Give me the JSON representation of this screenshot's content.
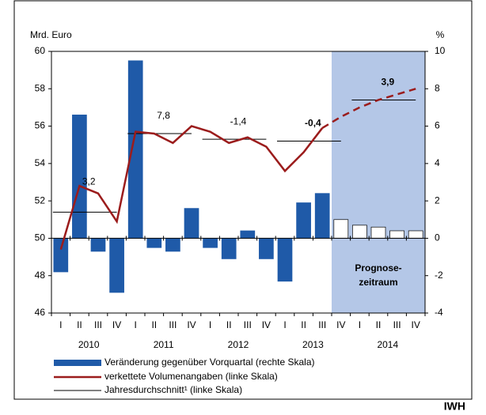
{
  "chart_data": {
    "type": "bar-line",
    "left_axis_label": "Mrd. Euro",
    "right_axis_label": "%",
    "categories": [
      "I",
      "II",
      "III",
      "IV",
      "I",
      "II",
      "III",
      "IV",
      "I",
      "II",
      "III",
      "IV",
      "I",
      "II",
      "III",
      "IV",
      "I",
      "II",
      "III",
      "IV"
    ],
    "years": [
      "2010",
      "2011",
      "2012",
      "2013",
      "2014"
    ],
    "ylim": [
      46,
      60
    ],
    "yticks": [
      46,
      48,
      50,
      52,
      54,
      56,
      58,
      60
    ],
    "y2lim": [
      -4,
      10
    ],
    "y2ticks": [
      -4,
      -2,
      0,
      2,
      4,
      6,
      8,
      10
    ],
    "series": [
      {
        "name": "Veränderung gegenüber Vorquartal (rechte Skala)",
        "axis": "y2",
        "color": "#1f5aa8",
        "forecast_color": "#ffffff",
        "values": [
          -1.8,
          6.6,
          -0.7,
          -2.9,
          9.5,
          -0.5,
          -0.7,
          1.6,
          -0.5,
          -1.1,
          0.4,
          -1.1,
          -2.3,
          1.9,
          2.4,
          1.0,
          0.7,
          0.6,
          0.4,
          0.4
        ]
      },
      {
        "name": "verkettete Volumenangaben (linke Skala)",
        "color": "#9b1c1c",
        "values": [
          49.4,
          52.8,
          52.4,
          50.9,
          55.7,
          55.6,
          55.1,
          56.0,
          55.7,
          55.1,
          55.4,
          54.9,
          53.6,
          54.6,
          55.9,
          null,
          null,
          null,
          null,
          null
        ]
      },
      {
        "color": "#9b1c1c",
        "dashed": true,
        "values": [
          null,
          null,
          null,
          null,
          null,
          null,
          null,
          null,
          null,
          null,
          null,
          null,
          null,
          null,
          55.9,
          56.5,
          57.0,
          57.4,
          57.7,
          58.0
        ]
      }
    ],
    "annual_averages": {
      "name": "Jahresdurchschnitt¹ (linke Skala)",
      "color": "#000000",
      "values": [
        51.4,
        55.6,
        55.3,
        55.2,
        57.4
      ]
    },
    "annual_growth": {
      "values": [
        3.2,
        7.8,
        -1.4,
        -0.4,
        3.9
      ],
      "value_labels": [
        "3,2",
        "7,8",
        "-1,4",
        "-0,4",
        "3,9"
      ],
      "bold": [
        false,
        false,
        false,
        true,
        true
      ]
    },
    "forecast_area": {
      "lines": [
        "Prognose-",
        "zeitraum"
      ],
      "color": "#b4c7e7"
    },
    "source": "IWH"
  }
}
